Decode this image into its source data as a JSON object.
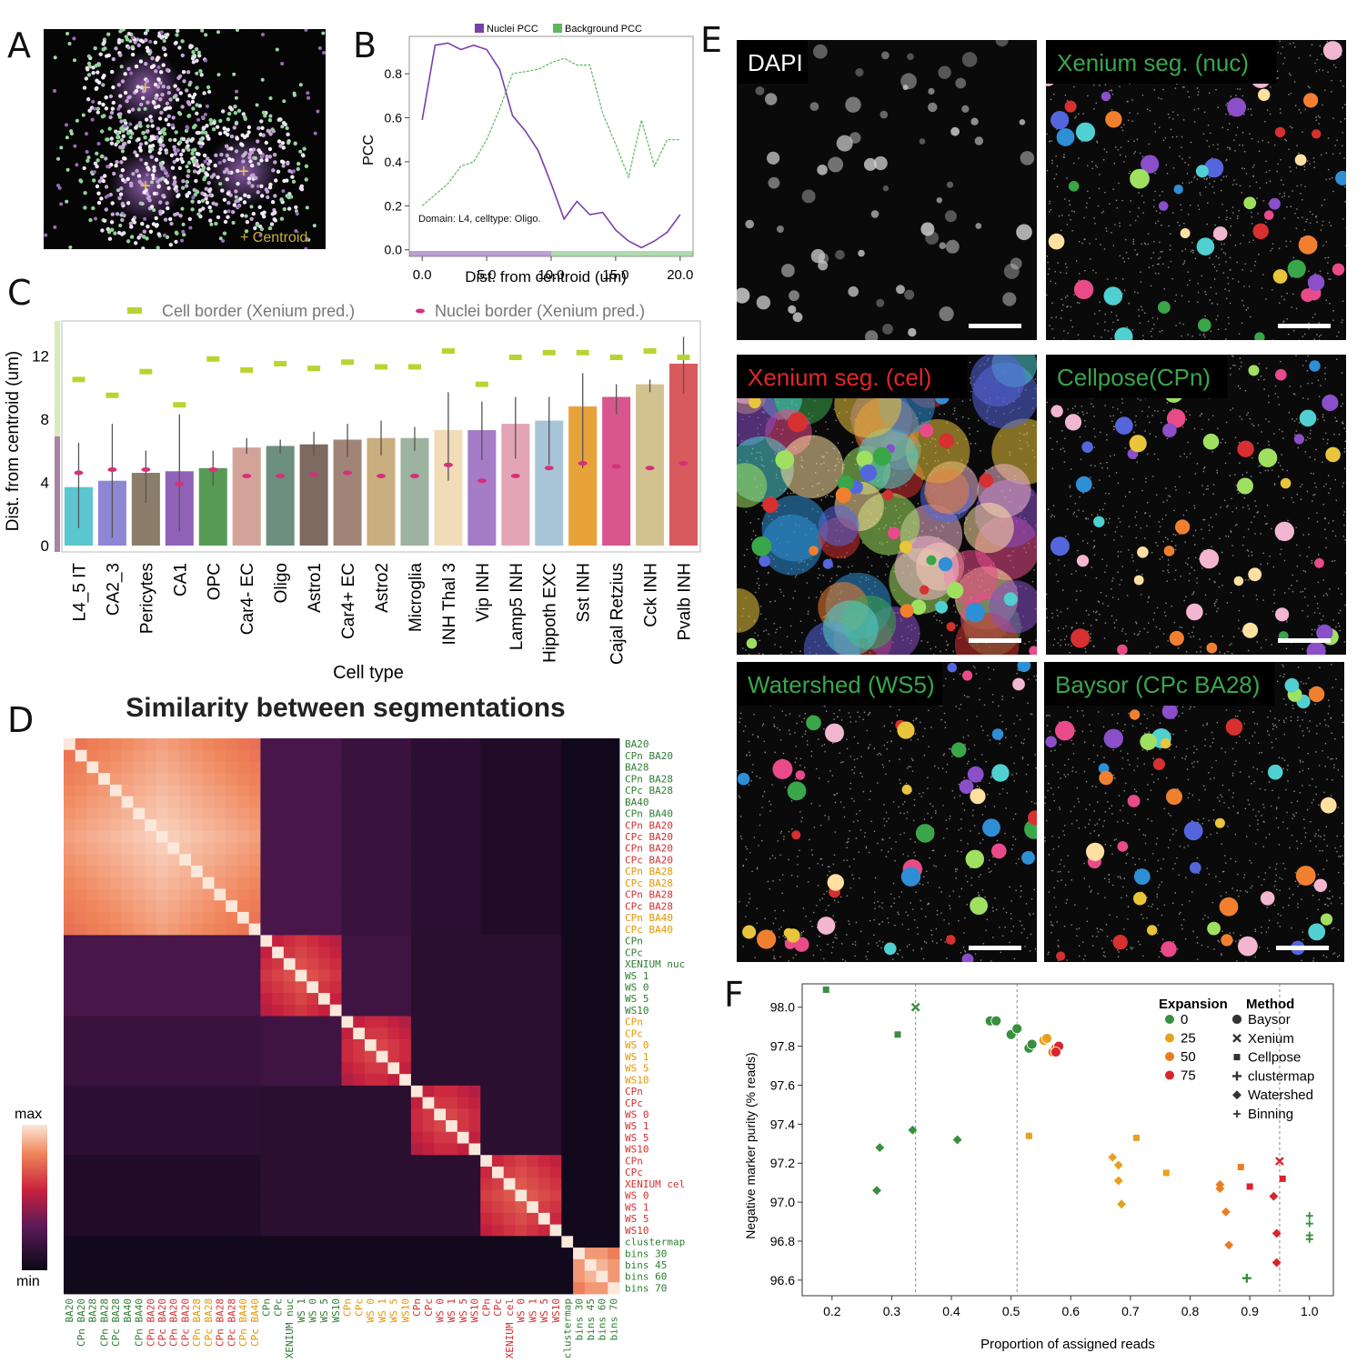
{
  "letters": {
    "a": "A",
    "b": "B",
    "c": "C",
    "d": "D",
    "e": "E",
    "f": "F"
  },
  "panelA": {
    "legend": "+ Centroid",
    "centroid_mark": "+"
  },
  "panelB": {
    "legend": [
      "Nuclei PCC",
      "Background PCC"
    ],
    "annotation": "Domain: L4, celltype: Oligo.",
    "ylabel": "PCC",
    "xlabel": "Dist. from centroid (um)",
    "xticks": [
      "0.0",
      "5.0",
      "10.0",
      "15.0",
      "20.0"
    ],
    "yticks": [
      "0.0",
      "0.2",
      "0.4",
      "0.6",
      "0.8"
    ],
    "colors": {
      "nuclei": "#7b3fa8",
      "background": "#5cb85c"
    }
  },
  "panelC": {
    "legend": [
      "Cell border (Xenium pred.)",
      "Nuclei border (Xenium pred.)"
    ],
    "ylabel": "Dist. from centroid (um)",
    "xlabel": "Cell type",
    "yticks": [
      "0",
      "4",
      "8",
      "12"
    ],
    "colors": {
      "cell_border": "#b8d430",
      "nuclei_border": "#d6307a"
    }
  },
  "panelD": {
    "title": "Similarity between segmentations",
    "cbar_max": "max",
    "cbar_min": "min",
    "labels": [
      {
        "t": "BA20",
        "c": "#2e7d32"
      },
      {
        "t": "CPn BA20",
        "c": "#2e7d32"
      },
      {
        "t": "BA28",
        "c": "#2e7d32"
      },
      {
        "t": "CPn BA28",
        "c": "#2e7d32"
      },
      {
        "t": "CPc BA28",
        "c": "#2e7d32"
      },
      {
        "t": "BA40",
        "c": "#2e7d32"
      },
      {
        "t": "CPn BA40",
        "c": "#2e7d32"
      },
      {
        "t": "CPn BA20",
        "c": "#d32f2f"
      },
      {
        "t": "CPc BA20",
        "c": "#d32f2f"
      },
      {
        "t": "CPn BA20",
        "c": "#d32f2f"
      },
      {
        "t": "CPc BA20",
        "c": "#d32f2f"
      },
      {
        "t": "CPn BA28",
        "c": "#e69500"
      },
      {
        "t": "CPc BA28",
        "c": "#e69500"
      },
      {
        "t": "CPn BA28",
        "c": "#d32f2f"
      },
      {
        "t": "CPc BA28",
        "c": "#d32f2f"
      },
      {
        "t": "CPn BA40",
        "c": "#e69500"
      },
      {
        "t": "CPc BA40",
        "c": "#e69500"
      },
      {
        "t": "CPn",
        "c": "#2e7d32"
      },
      {
        "t": "CPc",
        "c": "#2e7d32"
      },
      {
        "t": "XENIUM nuc",
        "c": "#2e7d32"
      },
      {
        "t": "WS 1",
        "c": "#2e7d32"
      },
      {
        "t": "WS 0",
        "c": "#2e7d32"
      },
      {
        "t": "WS 5",
        "c": "#2e7d32"
      },
      {
        "t": "WS10",
        "c": "#2e7d32"
      },
      {
        "t": "CPn",
        "c": "#e69500"
      },
      {
        "t": "CPc",
        "c": "#e69500"
      },
      {
        "t": "WS 0",
        "c": "#e69500"
      },
      {
        "t": "WS 1",
        "c": "#e69500"
      },
      {
        "t": "WS 5",
        "c": "#e69500"
      },
      {
        "t": "WS10",
        "c": "#e69500"
      },
      {
        "t": "CPn",
        "c": "#d32f2f"
      },
      {
        "t": "CPc",
        "c": "#d32f2f"
      },
      {
        "t": "WS 0",
        "c": "#d32f2f"
      },
      {
        "t": "WS 1",
        "c": "#d32f2f"
      },
      {
        "t": "WS 5",
        "c": "#d32f2f"
      },
      {
        "t": "WS10",
        "c": "#d32f2f"
      },
      {
        "t": "CPn",
        "c": "#d32f2f"
      },
      {
        "t": "CPc",
        "c": "#d32f2f"
      },
      {
        "t": "XENIUM cel",
        "c": "#d32f2f"
      },
      {
        "t": "WS 0",
        "c": "#d32f2f"
      },
      {
        "t": "WS 1",
        "c": "#d32f2f"
      },
      {
        "t": "WS 5",
        "c": "#d32f2f"
      },
      {
        "t": "WS10",
        "c": "#d32f2f"
      },
      {
        "t": "clustermap",
        "c": "#2e7d32"
      },
      {
        "t": "bins 30",
        "c": "#2e7d32"
      },
      {
        "t": "bins 45",
        "c": "#2e7d32"
      },
      {
        "t": "bins 60",
        "c": "#2e7d32"
      },
      {
        "t": "bins 70",
        "c": "#2e7d32"
      }
    ]
  },
  "panelE": {
    "titles": [
      {
        "t": "DAPI",
        "c": "#ffffff"
      },
      {
        "t": "Xenium seg. (nuc)",
        "c": "#3aa64a"
      },
      {
        "t": "Xenium seg. (cel)",
        "c": "#e0262b"
      },
      {
        "t": "Cellpose(CPn)",
        "c": "#3aa64a"
      },
      {
        "t": "Watershed (WS5)",
        "c": "#3aa64a"
      },
      {
        "t": "Baysor (CPc BA28)",
        "c": "#3aa64a"
      }
    ]
  },
  "panelF": {
    "ylabel": "Negative marker purity (% reads)",
    "xlabel": "Proportion of assigned reads",
    "xticks": [
      "0.2",
      "0.3",
      "0.4",
      "0.5",
      "0.6",
      "0.7",
      "0.8",
      "0.9",
      "1.0"
    ],
    "yticks": [
      "96.6",
      "96.8",
      "97.0",
      "97.2",
      "97.4",
      "97.6",
      "97.8",
      "98.0"
    ],
    "legend_expansion_title": "Expansion",
    "legend_method_title": "Method",
    "expansion": [
      {
        "t": "0",
        "c": "#3a8f3e"
      },
      {
        "t": "25",
        "c": "#e6a21e"
      },
      {
        "t": "50",
        "c": "#ea7d22"
      },
      {
        "t": "75",
        "c": "#d9262b"
      }
    ],
    "methods": [
      "Baysor",
      "Xenium",
      "Cellpose",
      "clustermap",
      "Watershed",
      "Binning"
    ]
  },
  "chart_data": [
    {
      "type": "line",
      "title": "",
      "xlabel": "Dist. from centroid (um)",
      "ylabel": "PCC",
      "xlim": [
        -1,
        21
      ],
      "ylim": [
        -0.03,
        0.97
      ],
      "x": [
        0,
        1,
        2,
        3,
        4,
        5,
        6,
        7,
        8,
        9,
        10,
        11,
        12,
        13,
        14,
        15,
        16,
        17,
        18,
        19,
        20
      ],
      "series": [
        {
          "name": "Nuclei PCC",
          "values": [
            0.59,
            0.93,
            0.94,
            0.91,
            0.93,
            0.91,
            0.82,
            0.61,
            0.54,
            0.45,
            0.3,
            0.14,
            0.22,
            0.16,
            0.17,
            0.09,
            0.04,
            0.01,
            0.04,
            0.08,
            0.16
          ]
        },
        {
          "name": "Background PCC",
          "values": [
            0.2,
            0.25,
            0.3,
            0.38,
            0.4,
            0.5,
            0.64,
            0.8,
            0.81,
            0.82,
            0.85,
            0.87,
            0.84,
            0.84,
            0.62,
            0.48,
            0.33,
            0.59,
            0.38,
            0.5,
            0.5
          ]
        }
      ],
      "legend": "top"
    },
    {
      "type": "bar",
      "title": "",
      "xlabel": "Cell type",
      "ylabel": "Dist. from centroid (um)",
      "ylim": [
        -0.4,
        14.2
      ],
      "categories": [
        "L4_5 IT",
        "CA2_3",
        "Pericytes",
        "CA1",
        "OPC",
        "Car4- EC",
        "Oligo",
        "Astro1",
        "Car4+ EC",
        "Astro2",
        "Microglia",
        "INH Thal 3",
        "Vip INH",
        "Lamp5 INH",
        "Hippoth EXC",
        "Sst INH",
        "Cajal Retzius",
        "Cck INH",
        "Pvalb INH"
      ],
      "values": [
        3.7,
        4.1,
        4.6,
        4.7,
        4.9,
        6.2,
        6.3,
        6.4,
        6.7,
        6.8,
        6.8,
        7.3,
        7.3,
        7.7,
        7.9,
        8.8,
        9.4,
        10.2,
        11.5
      ],
      "err_low": [
        1.1,
        0.5,
        2.7,
        0.9,
        3.8,
        5.8,
        5.8,
        5.7,
        5.6,
        5.7,
        6.0,
        4.1,
        5.4,
        5.5,
        5.1,
        4.9,
        8.3,
        9.7,
        9.6
      ],
      "err_high": [
        6.5,
        7.7,
        6.0,
        8.3,
        6.0,
        6.8,
        6.7,
        7.2,
        7.7,
        7.9,
        7.5,
        9.7,
        9.1,
        9.4,
        9.4,
        10.9,
        10.2,
        10.5,
        13.2
      ],
      "bar_colors": [
        "#5bc6cf",
        "#8e87d4",
        "#8c7d6a",
        "#8f62b8",
        "#579a56",
        "#d3a39a",
        "#6d8f80",
        "#7d6a60",
        "#a08478",
        "#c9ae7f",
        "#9cb39f",
        "#f2dcb8",
        "#a57cc6",
        "#e3a5b6",
        "#a8c5d8",
        "#e8a23a",
        "#d9558d",
        "#d2c290",
        "#d95a5d"
      ],
      "cell_border": [
        10.5,
        9.5,
        11.0,
        8.9,
        11.8,
        11.1,
        11.5,
        11.2,
        11.6,
        11.3,
        11.3,
        12.3,
        10.2,
        11.9,
        12.2,
        12.2,
        11.9,
        12.3,
        11.9
      ],
      "nuclei_border": [
        4.6,
        4.8,
        4.8,
        3.9,
        4.8,
        4.4,
        4.4,
        4.5,
        4.6,
        4.4,
        4.4,
        5.1,
        4.1,
        4.4,
        4.9,
        5.2,
        5.0,
        4.9,
        5.2
      ],
      "legend": "top"
    },
    {
      "type": "heatmap",
      "title": "Similarity between segmentations",
      "blocks": [
        [
          0,
          17,
          0.86
        ],
        [
          17,
          24,
          0.6
        ],
        [
          24,
          30,
          0.58
        ],
        [
          30,
          36,
          0.58
        ],
        [
          36,
          43,
          0.62
        ],
        [
          43,
          44,
          1.0
        ],
        [
          44,
          48,
          0.85
        ]
      ],
      "colorbar": [
        "min",
        "max"
      ]
    },
    {
      "type": "scatter",
      "title": "",
      "xlabel": "Proportion of assigned reads",
      "ylabel": "Negative marker purity (% reads)",
      "xlim": [
        0.15,
        1.04
      ],
      "ylim": [
        96.52,
        98.12
      ],
      "vlines": [
        0.34,
        0.51,
        0.95
      ],
      "points": [
        {
          "x": 0.19,
          "y": 98.09,
          "m": "square",
          "e": "0"
        },
        {
          "x": 0.31,
          "y": 97.86,
          "m": "square",
          "e": "0"
        },
        {
          "x": 0.34,
          "y": 98.0,
          "m": "x",
          "e": "0"
        },
        {
          "x": 0.335,
          "y": 97.37,
          "m": "diamond",
          "e": "0"
        },
        {
          "x": 0.28,
          "y": 97.28,
          "m": "diamond",
          "e": "0"
        },
        {
          "x": 0.275,
          "y": 97.06,
          "m": "diamond",
          "e": "0"
        },
        {
          "x": 0.41,
          "y": 97.32,
          "m": "diamond",
          "e": "0"
        },
        {
          "x": 0.465,
          "y": 97.93,
          "m": "circle",
          "e": "0"
        },
        {
          "x": 0.475,
          "y": 97.93,
          "m": "circle",
          "e": "0"
        },
        {
          "x": 0.5,
          "y": 97.86,
          "m": "circle",
          "e": "0"
        },
        {
          "x": 0.51,
          "y": 97.89,
          "m": "circle",
          "e": "0"
        },
        {
          "x": 0.53,
          "y": 97.79,
          "m": "circle",
          "e": "0"
        },
        {
          "x": 0.535,
          "y": 97.81,
          "m": "circle",
          "e": "0"
        },
        {
          "x": 0.555,
          "y": 97.83,
          "m": "circle",
          "e": "25"
        },
        {
          "x": 0.56,
          "y": 97.84,
          "m": "circle",
          "e": "25"
        },
        {
          "x": 0.57,
          "y": 97.77,
          "m": "circle",
          "e": "50"
        },
        {
          "x": 0.575,
          "y": 97.79,
          "m": "circle",
          "e": "50"
        },
        {
          "x": 0.58,
          "y": 97.8,
          "m": "circle",
          "e": "75"
        },
        {
          "x": 0.575,
          "y": 97.77,
          "m": "circle",
          "e": "75"
        },
        {
          "x": 0.53,
          "y": 97.34,
          "m": "square",
          "e": "25"
        },
        {
          "x": 0.71,
          "y": 97.33,
          "m": "square",
          "e": "25"
        },
        {
          "x": 0.76,
          "y": 97.15,
          "m": "square",
          "e": "25"
        },
        {
          "x": 0.67,
          "y": 97.23,
          "m": "diamond",
          "e": "25"
        },
        {
          "x": 0.68,
          "y": 97.19,
          "m": "diamond",
          "e": "25"
        },
        {
          "x": 0.68,
          "y": 97.11,
          "m": "diamond",
          "e": "25"
        },
        {
          "x": 0.685,
          "y": 96.99,
          "m": "diamond",
          "e": "25"
        },
        {
          "x": 0.885,
          "y": 97.18,
          "m": "square",
          "e": "50"
        },
        {
          "x": 0.85,
          "y": 97.09,
          "m": "diamond",
          "e": "50"
        },
        {
          "x": 0.85,
          "y": 97.07,
          "m": "diamond",
          "e": "50"
        },
        {
          "x": 0.86,
          "y": 96.95,
          "m": "diamond",
          "e": "50"
        },
        {
          "x": 0.865,
          "y": 96.78,
          "m": "diamond",
          "e": "50"
        },
        {
          "x": 0.9,
          "y": 97.08,
          "m": "square",
          "e": "75"
        },
        {
          "x": 0.955,
          "y": 97.12,
          "m": "square",
          "e": "75"
        },
        {
          "x": 0.95,
          "y": 97.21,
          "m": "x",
          "e": "75"
        },
        {
          "x": 0.94,
          "y": 97.03,
          "m": "diamond",
          "e": "75"
        },
        {
          "x": 0.945,
          "y": 96.84,
          "m": "diamond",
          "e": "75"
        },
        {
          "x": 0.945,
          "y": 96.69,
          "m": "diamond",
          "e": "75"
        },
        {
          "x": 0.895,
          "y": 96.61,
          "m": "plus",
          "e": "0"
        },
        {
          "x": 1.0,
          "y": 96.93,
          "m": "star",
          "e": "0"
        },
        {
          "x": 1.0,
          "y": 96.89,
          "m": "star",
          "e": "0"
        },
        {
          "x": 1.0,
          "y": 96.83,
          "m": "star",
          "e": "0"
        },
        {
          "x": 1.0,
          "y": 96.81,
          "m": "star",
          "e": "0"
        }
      ]
    }
  ]
}
